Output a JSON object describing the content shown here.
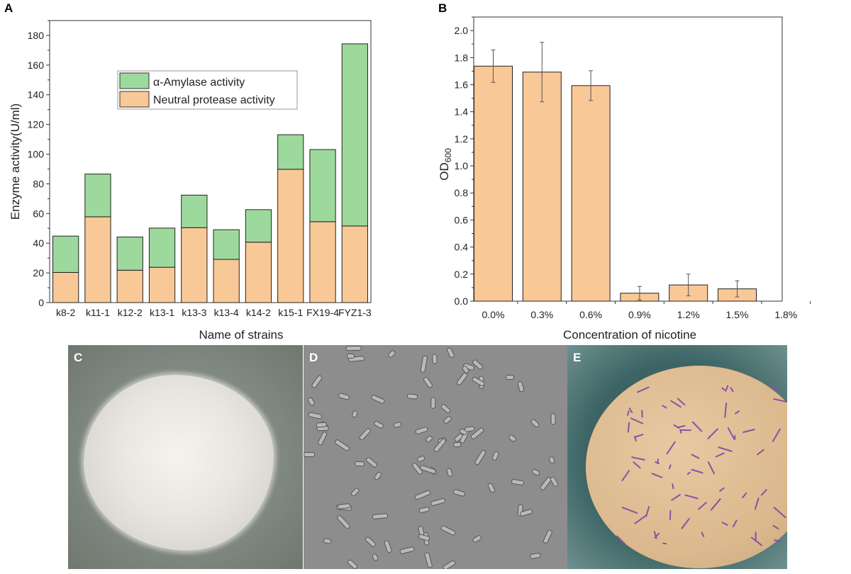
{
  "panels": {
    "a": "A",
    "b": "B",
    "c": "C",
    "d": "D",
    "e": "E"
  },
  "chart_data": [
    {
      "type": "bar",
      "stacked": true,
      "categories": [
        "k8-2",
        "k11-1",
        "k12-2",
        "k13-1",
        "k13-3",
        "k13-4",
        "k14-2",
        "k15-1",
        "FX19-4",
        "FYZ1-3"
      ],
      "series": [
        {
          "name": "Neutral protease activity",
          "color": "#f9c897",
          "values": [
            20.3,
            57.8,
            21.8,
            23.8,
            50.5,
            29.1,
            40.7,
            89.8,
            54.5,
            51.6
          ]
        },
        {
          "name": "α-Amylase activity",
          "color": "#9dd99d",
          "values": [
            24.5,
            28.8,
            22.4,
            26.4,
            21.9,
            20.0,
            21.9,
            23.3,
            48.6,
            122.7
          ]
        }
      ],
      "xlabel": "Name of strains",
      "ylabel": "Enzyme activity(U/ml)",
      "ylim": [
        0,
        190
      ],
      "yticks": [
        0,
        20,
        40,
        60,
        80,
        100,
        120,
        140,
        160,
        180
      ],
      "legend": {
        "placement": "top-center",
        "entries": [
          "α-Amylase activity",
          "Neutral protease activity"
        ]
      },
      "grid": false
    },
    {
      "type": "bar",
      "categories": [
        "0.0%",
        "0.3%",
        "0.6%",
        "0.9%",
        "1.2%",
        "1.5%",
        "1.8%"
      ],
      "values": [
        1.737,
        1.693,
        1.593,
        0.059,
        0.12,
        0.091,
        0
      ],
      "errors": [
        0.12,
        0.22,
        0.11,
        0.05,
        0.08,
        0.06,
        0
      ],
      "color": "#f9c897",
      "xlabel": "Concentration of nicotine",
      "ylabel": "OD",
      "ylabel_sub": "600",
      "ylim": [
        0,
        2.1
      ],
      "yticks": [
        "0.0",
        "0.2",
        "0.4",
        "0.6",
        "0.8",
        "1.0",
        "1.2",
        "1.4",
        "1.6",
        "1.8",
        "2.0"
      ],
      "grid": false
    }
  ]
}
